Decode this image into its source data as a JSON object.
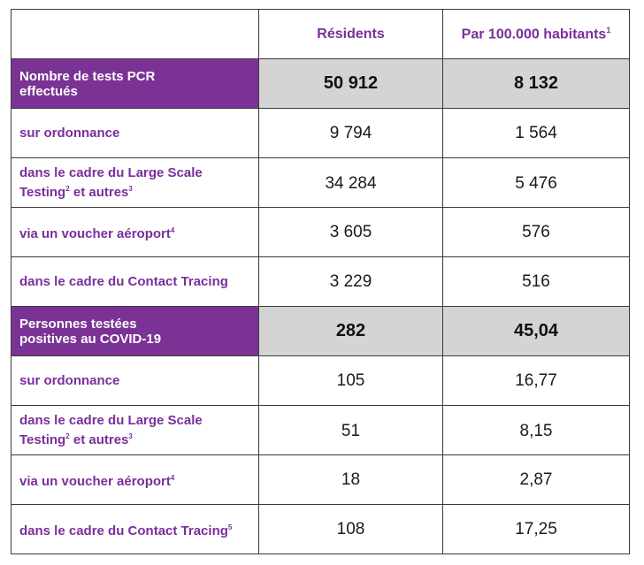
{
  "header": {
    "col_residents": "Résidents",
    "col_per100k": "Par 100.000 habitants",
    "col_per100k_note": "1"
  },
  "tests": {
    "summary": {
      "label_line1": "Nombre de tests PCR",
      "label_line2": "effectués",
      "residents": "50 912",
      "per100k": "8 132"
    },
    "rows": [
      {
        "label": "sur ordonnance",
        "note": "",
        "residents": "9 794",
        "per100k": "1 564"
      },
      {
        "label_line1": "dans le cadre du Large Scale",
        "label_line2_a": "Testing",
        "note_a": "2",
        "label_line2_b": " et autres",
        "note_b": "3",
        "residents": "34 284",
        "per100k": "5 476"
      },
      {
        "label": "via un voucher aéroport",
        "note": "4",
        "residents": "3 605",
        "per100k": "576"
      },
      {
        "label": "dans le cadre du Contact Tracing",
        "note": "",
        "residents": "3 229",
        "per100k": "516"
      }
    ]
  },
  "positives": {
    "summary": {
      "label_line1": "Personnes testées",
      "label_line2": "positives au COVID-19",
      "residents": "282",
      "per100k": "45,04"
    },
    "rows": [
      {
        "label": "sur ordonnance",
        "note": "",
        "residents": "105",
        "per100k": "16,77"
      },
      {
        "label_line1": "dans le cadre du Large Scale",
        "label_line2_a": "Testing",
        "note_a": "2",
        "label_line2_b": " et autres",
        "note_b": "3",
        "residents": "51",
        "per100k": "8,15"
      },
      {
        "label": "via un voucher aéroport",
        "note": "4",
        "residents": "18",
        "per100k": "2,87"
      },
      {
        "label": "dans le cadre du Contact Tracing",
        "note": "5",
        "residents": "108",
        "per100k": "17,25"
      }
    ]
  }
}
